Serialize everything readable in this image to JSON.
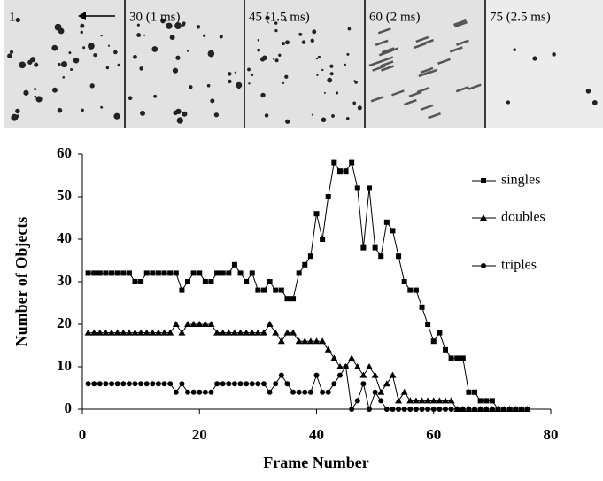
{
  "image_strip": {
    "labels": [
      "1",
      "30 (1 ms)",
      "45 (1.5 ms)",
      "60 (2 ms)",
      "75 (2.5 ms)"
    ]
  },
  "chart_data": {
    "type": "line",
    "xlabel": "Frame Number",
    "ylabel": "Number of Objects",
    "x": [
      1,
      2,
      3,
      4,
      5,
      6,
      7,
      8,
      9,
      10,
      11,
      12,
      13,
      14,
      15,
      16,
      17,
      18,
      19,
      20,
      21,
      22,
      23,
      24,
      25,
      26,
      27,
      28,
      29,
      30,
      31,
      32,
      33,
      34,
      35,
      36,
      37,
      38,
      39,
      40,
      41,
      42,
      43,
      44,
      45,
      46,
      47,
      48,
      49,
      50,
      51,
      52,
      53,
      54,
      55,
      56,
      57,
      58,
      59,
      60,
      61,
      62,
      63,
      64,
      65,
      66,
      67,
      68,
      69,
      70,
      71,
      72,
      73,
      74,
      75,
      76
    ],
    "series": [
      {
        "name": "singles",
        "color": "#000000",
        "marker": "square",
        "values": [
          32,
          32,
          32,
          32,
          32,
          32,
          32,
          32,
          30,
          30,
          32,
          32,
          32,
          32,
          32,
          32,
          28,
          30,
          32,
          32,
          30,
          30,
          32,
          32,
          32,
          34,
          32,
          30,
          32,
          28,
          28,
          30,
          28,
          28,
          26,
          26,
          32,
          34,
          36,
          46,
          40,
          50,
          58,
          56,
          56,
          58,
          52,
          38,
          52,
          38,
          36,
          44,
          42,
          36,
          30,
          28,
          28,
          24,
          20,
          16,
          18,
          14,
          12,
          12,
          12,
          4,
          4,
          2,
          2,
          2,
          0,
          0,
          0,
          0,
          0,
          0
        ]
      },
      {
        "name": "doubles",
        "color": "#000000",
        "marker": "triangle",
        "values": [
          18,
          18,
          18,
          18,
          18,
          18,
          18,
          18,
          18,
          18,
          18,
          18,
          18,
          18,
          18,
          20,
          18,
          20,
          20,
          20,
          20,
          20,
          18,
          18,
          18,
          18,
          18,
          18,
          18,
          18,
          18,
          20,
          18,
          16,
          18,
          18,
          16,
          16,
          16,
          16,
          16,
          14,
          12,
          10,
          10,
          12,
          10,
          8,
          10,
          8,
          4,
          6,
          8,
          2,
          4,
          2,
          2,
          2,
          2,
          2,
          2,
          2,
          2,
          0,
          0,
          0,
          0,
          0,
          0,
          0,
          0,
          0,
          0,
          0,
          0,
          0
        ]
      },
      {
        "name": "triples",
        "color": "#000000",
        "marker": "circle",
        "values": [
          6,
          6,
          6,
          6,
          6,
          6,
          6,
          6,
          6,
          6,
          6,
          6,
          6,
          6,
          6,
          4,
          6,
          4,
          4,
          4,
          4,
          4,
          6,
          6,
          6,
          6,
          6,
          6,
          6,
          6,
          6,
          4,
          6,
          8,
          6,
          4,
          4,
          4,
          4,
          8,
          4,
          4,
          6,
          8,
          10,
          0,
          2,
          6,
          0,
          4,
          2,
          0,
          0,
          0,
          0,
          0,
          0,
          0,
          0,
          0,
          0,
          0,
          0,
          0,
          0,
          0,
          0,
          0,
          0,
          0,
          0,
          0,
          0,
          0,
          0,
          0
        ]
      }
    ],
    "xlim": [
      0,
      80
    ],
    "xticks": [
      0,
      20,
      40,
      60,
      80
    ],
    "ylim": [
      0,
      60
    ],
    "yticks": [
      0,
      10,
      20,
      30,
      40,
      50,
      60
    ],
    "legend": "right"
  }
}
